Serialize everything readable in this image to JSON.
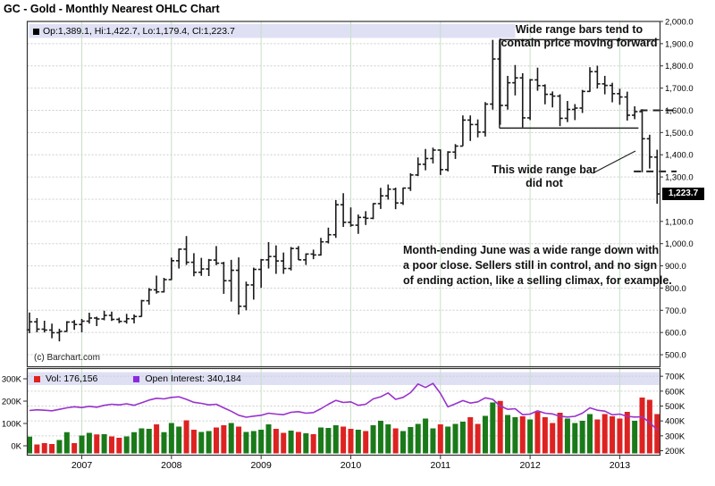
{
  "title": "GC - Gold - Monthly Nearest OHLC Chart",
  "price_legend": {
    "text": "Op:1,389.1, Hi:1,422.7, Lo:1,179.4, Cl:1,223.7",
    "swatch_color": "#000000"
  },
  "volume_legend": {
    "vol_label": "Vol: 176,156",
    "vol_color": "#e02020",
    "oi_label": "Open Interest: 340,184",
    "oi_color": "#8a2be2"
  },
  "copyright": "(c) Barchart.com",
  "last_price_box": "1,223.7",
  "annotations": {
    "top": [
      "Wide range bars tend to",
      "contain price moving forward"
    ],
    "mid": [
      "This wide range bar",
      "did not"
    ],
    "para": [
      "Month-ending June was a wide range down with",
      "a poor close.  Sellers still in control, and no sign",
      "of ending action, like a selling climax, for example."
    ]
  },
  "chart_data": {
    "type": "ohlc",
    "title": "GC - Gold - Monthly Nearest OHLC Chart",
    "start_month": "2006-06",
    "end_month": "2013-06",
    "price_axis": {
      "min": 500,
      "max": 2000,
      "step": 100,
      "labels": [
        [
          2000,
          "2,000.0"
        ],
        [
          1900,
          "1,900.0"
        ],
        [
          1800,
          "1,800.0"
        ],
        [
          1700,
          "1,700.0"
        ],
        [
          1600,
          "1,600.0"
        ],
        [
          1500,
          "1,500.0"
        ],
        [
          1400,
          "1,400.0"
        ],
        [
          1300,
          "1,300.0"
        ],
        [
          1100,
          "1,100.0"
        ],
        [
          1000,
          "1,000.0"
        ],
        [
          900,
          "900.0"
        ],
        [
          800,
          "800.0"
        ],
        [
          700,
          "700.0"
        ],
        [
          600,
          "600.0"
        ],
        [
          500,
          "500.0"
        ]
      ]
    },
    "volume_axis_left": {
      "min": 0,
      "max": 300,
      "unit": "K",
      "labels": [
        [
          300,
          "300K"
        ],
        [
          200,
          "200K"
        ],
        [
          100,
          "100K"
        ],
        [
          0,
          "0K"
        ]
      ]
    },
    "oi_axis_right": {
      "min": 200,
      "max": 700,
      "unit": "K",
      "labels": [
        [
          700,
          "700K"
        ],
        [
          600,
          "600K"
        ],
        [
          500,
          "500K"
        ],
        [
          400,
          "400K"
        ],
        [
          300,
          "300K"
        ],
        [
          200,
          "200K"
        ]
      ]
    },
    "year_ticks": [
      [
        7,
        "2007"
      ],
      [
        19,
        "2008"
      ],
      [
        31,
        "2009"
      ],
      [
        43,
        "2010"
      ],
      [
        55,
        "2011"
      ],
      [
        67,
        "2012"
      ],
      [
        79,
        "2013"
      ]
    ],
    "bar_format": [
      "open",
      "high",
      "low",
      "close",
      "volume_k",
      "open_interest_k"
    ],
    "bars": [
      [
        612,
        690,
        597,
        648,
        75,
        470
      ],
      [
        648,
        665,
        601,
        615,
        40,
        475
      ],
      [
        615,
        653,
        600,
        611,
        46,
        472
      ],
      [
        611,
        640,
        574,
        599,
        42,
        468
      ],
      [
        599,
        617,
        560,
        605,
        60,
        478
      ],
      [
        605,
        651,
        603,
        647,
        95,
        488
      ],
      [
        647,
        656,
        612,
        636,
        46,
        495
      ],
      [
        636,
        661,
        601,
        651,
        80,
        490
      ],
      [
        651,
        689,
        640,
        665,
        92,
        498
      ],
      [
        665,
        671,
        629,
        661,
        85,
        492
      ],
      [
        661,
        698,
        655,
        677,
        86,
        505
      ],
      [
        677,
        694,
        652,
        659,
        76,
        512
      ],
      [
        659,
        667,
        642,
        650,
        70,
        508
      ],
      [
        650,
        684,
        640,
        662,
        76,
        515
      ],
      [
        662,
        681,
        641,
        672,
        95,
        505
      ],
      [
        672,
        747,
        671,
        743,
        112,
        522
      ],
      [
        743,
        800,
        725,
        792,
        110,
        540
      ],
      [
        792,
        856,
        775,
        783,
        130,
        552
      ],
      [
        783,
        846,
        780,
        838,
        95,
        548
      ],
      [
        838,
        937,
        836,
        923,
        136,
        558
      ],
      [
        923,
        978,
        888,
        975,
        120,
        562
      ],
      [
        975,
        1034,
        904,
        916,
        148,
        545
      ],
      [
        916,
        957,
        853,
        871,
        106,
        525
      ],
      [
        871,
        936,
        855,
        886,
        96,
        518
      ],
      [
        886,
        931,
        854,
        926,
        100,
        508
      ],
      [
        926,
        989,
        903,
        912,
        116,
        512
      ],
      [
        912,
        918,
        774,
        833,
        126,
        488
      ],
      [
        833,
        927,
        739,
        880,
        136,
        465
      ],
      [
        880,
        938,
        681,
        718,
        120,
        438
      ],
      [
        718,
        829,
        700,
        814,
        96,
        425
      ],
      [
        814,
        892,
        748,
        884,
        100,
        432
      ],
      [
        884,
        931,
        801,
        927,
        106,
        438
      ],
      [
        927,
        1007,
        888,
        942,
        130,
        452
      ],
      [
        942,
        992,
        864,
        922,
        110,
        446
      ],
      [
        922,
        960,
        864,
        888,
        92,
        442
      ],
      [
        888,
        985,
        879,
        978,
        102,
        458
      ],
      [
        978,
        989,
        926,
        927,
        96,
        462
      ],
      [
        927,
        956,
        904,
        953,
        90,
        452
      ],
      [
        953,
        973,
        930,
        949,
        86,
        456
      ],
      [
        949,
        1026,
        946,
        1008,
        116,
        482
      ],
      [
        1008,
        1072,
        1001,
        1040,
        114,
        512
      ],
      [
        1040,
        1196,
        1026,
        1175,
        126,
        538
      ],
      [
        1175,
        1227,
        1075,
        1096,
        120,
        524
      ],
      [
        1096,
        1163,
        1076,
        1083,
        110,
        528
      ],
      [
        1083,
        1131,
        1044,
        1118,
        106,
        505
      ],
      [
        1118,
        1146,
        1084,
        1114,
        100,
        512
      ],
      [
        1114,
        1182,
        1110,
        1180,
        126,
        548
      ],
      [
        1180,
        1251,
        1156,
        1215,
        146,
        562
      ],
      [
        1215,
        1266,
        1198,
        1245,
        130,
        588
      ],
      [
        1245,
        1252,
        1155,
        1183,
        112,
        545
      ],
      [
        1183,
        1252,
        1174,
        1250,
        100,
        558
      ],
      [
        1250,
        1317,
        1237,
        1309,
        118,
        590
      ],
      [
        1309,
        1388,
        1304,
        1357,
        132,
        648
      ],
      [
        1357,
        1426,
        1330,
        1383,
        156,
        625
      ],
      [
        1383,
        1432,
        1361,
        1421,
        112,
        652
      ],
      [
        1421,
        1424,
        1309,
        1333,
        130,
        585
      ],
      [
        1333,
        1416,
        1325,
        1412,
        120,
        495
      ],
      [
        1412,
        1448,
        1381,
        1439,
        132,
        515
      ],
      [
        1439,
        1577,
        1439,
        1556,
        142,
        537
      ],
      [
        1556,
        1577,
        1462,
        1536,
        162,
        520
      ],
      [
        1536,
        1559,
        1478,
        1502,
        132,
        528
      ],
      [
        1502,
        1637,
        1482,
        1628,
        168,
        555
      ],
      [
        1628,
        1917,
        1603,
        1831,
        228,
        545
      ],
      [
        1831,
        1923,
        1535,
        1622,
        235,
        500
      ],
      [
        1622,
        1755,
        1603,
        1724,
        172,
        478
      ],
      [
        1724,
        1804,
        1667,
        1746,
        162,
        482
      ],
      [
        1746,
        1767,
        1523,
        1566,
        166,
        442
      ],
      [
        1566,
        1741,
        1556,
        1737,
        152,
        446
      ],
      [
        1737,
        1792,
        1688,
        1711,
        186,
        468
      ],
      [
        1711,
        1717,
        1627,
        1672,
        162,
        452
      ],
      [
        1672,
        1685,
        1613,
        1664,
        136,
        447
      ],
      [
        1664,
        1672,
        1529,
        1564,
        182,
        432
      ],
      [
        1564,
        1642,
        1547,
        1604,
        156,
        426
      ],
      [
        1604,
        1628,
        1556,
        1610,
        136,
        431
      ],
      [
        1610,
        1692,
        1588,
        1685,
        146,
        452
      ],
      [
        1685,
        1794,
        1683,
        1774,
        176,
        488
      ],
      [
        1774,
        1801,
        1698,
        1719,
        152,
        472
      ],
      [
        1719,
        1755,
        1672,
        1712,
        176,
        466
      ],
      [
        1712,
        1724,
        1636,
        1675,
        166,
        441
      ],
      [
        1675,
        1697,
        1625,
        1660,
        156,
        446
      ],
      [
        1660,
        1684,
        1554,
        1578,
        186,
        431
      ],
      [
        1578,
        1618,
        1560,
        1594,
        146,
        426
      ],
      [
        1594,
        1605,
        1321,
        1472,
        250,
        428
      ],
      [
        1472,
        1490,
        1338,
        1390,
        240,
        390
      ],
      [
        1389.1,
        1422.7,
        1179.4,
        1223.7,
        176,
        340
      ]
    ],
    "last_bar": {
      "open": 1389.1,
      "high": 1422.7,
      "low": 1179.4,
      "close": 1223.7,
      "volume": 176156,
      "open_interest": 340184
    },
    "overlays": {
      "containment_box": {
        "left_index": 62.9,
        "top_price": 1918,
        "bottom_price": 1520,
        "bottom_end_index": 81.5
      },
      "dashed_high_line": {
        "price": 1600,
        "from_index": 82
      },
      "dashed_low_line": {
        "price": 1325,
        "from_index": 81
      }
    },
    "colors": {
      "up": "#1a7a1a",
      "down": "#dd2222",
      "bar": "#1a1a1a",
      "oi_line": "#9932cc",
      "grid": "#cdcdcd",
      "year_grid": "#c6e0c6",
      "legend_bg": "#dfe0f4",
      "border": "#333333"
    },
    "legend_position": "top-left",
    "grid": true
  }
}
